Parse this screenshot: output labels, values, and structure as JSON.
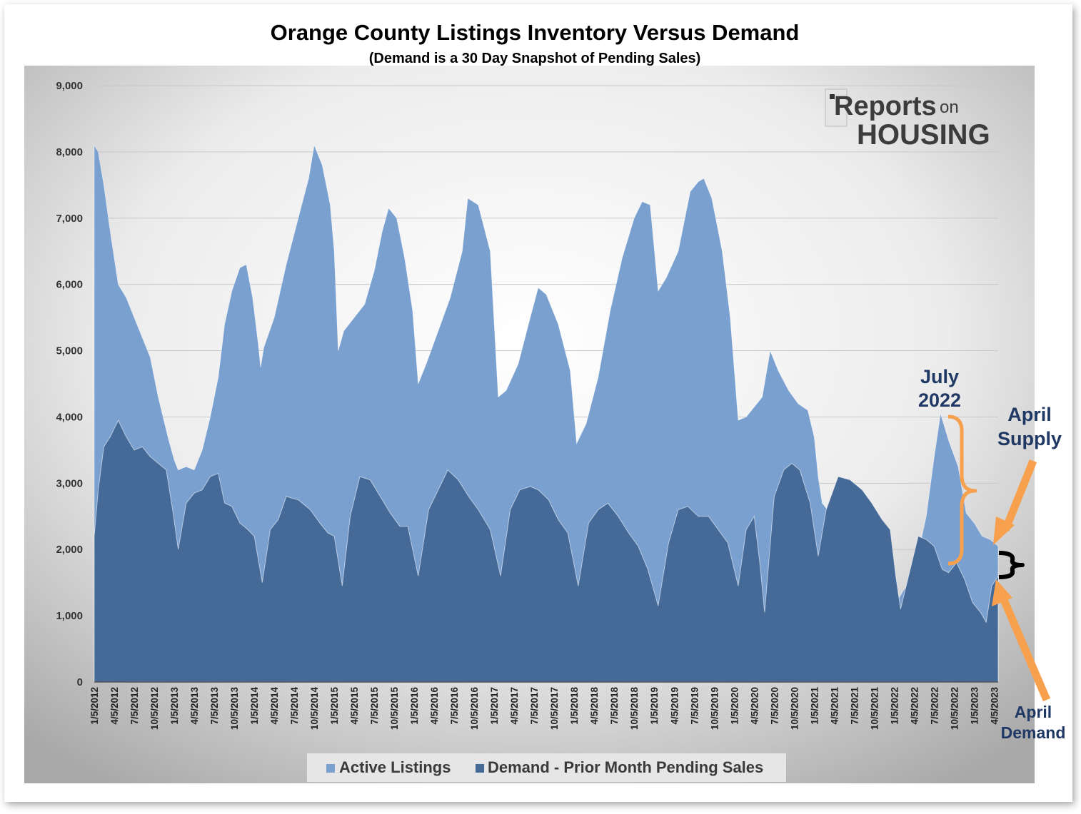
{
  "chart_data": {
    "type": "area",
    "title": "Orange County Listings Inventory Versus Demand",
    "subtitle": "(Demand is a 30 Day Snapshot of Pending Sales)",
    "xlabel": "",
    "ylabel": "",
    "ylim": [
      0,
      9000
    ],
    "grid": true,
    "legend_position": "bottom",
    "y_ticks": [
      "0",
      "1,000",
      "2,000",
      "3,000",
      "4,000",
      "5,000",
      "6,000",
      "7,000",
      "8,000",
      "9,000"
    ],
    "x_ticks": [
      "1/5/2012",
      "4/5/2012",
      "7/5/2012",
      "10/5/2012",
      "1/5/2013",
      "4/5/2013",
      "7/5/2013",
      "10/5/2013",
      "1/5/2014",
      "4/5/2014",
      "7/5/2014",
      "10/5/2014",
      "1/5/2015",
      "4/5/2015",
      "7/5/2015",
      "10/5/2015",
      "1/5/2016",
      "4/5/2016",
      "7/5/2016",
      "10/5/2016",
      "1/5/2017",
      "4/5/2017",
      "7/5/2017",
      "10/5/2017",
      "1/5/2018",
      "4/5/2018",
      "7/5/2018",
      "10/5/2018",
      "1/5/2019",
      "4/5/2019",
      "7/5/2019",
      "10/5/2019",
      "1/5/2020",
      "4/5/2020",
      "7/5/2020",
      "10/5/2020",
      "1/5/2021",
      "4/5/2021",
      "7/5/2021",
      "10/5/2021",
      "1/5/2022",
      "4/5/2022",
      "7/5/2022",
      "10/5/2022",
      "1/5/2023",
      "4/5/2023"
    ],
    "x_range_years": [
      2012.0,
      2023.3
    ],
    "series": [
      {
        "name": "Active Listings",
        "color": "#7aa0d0",
        "points": [
          [
            2012.0,
            8100
          ],
          [
            2012.05,
            8000
          ],
          [
            2012.12,
            7500
          ],
          [
            2012.2,
            6800
          ],
          [
            2012.3,
            6000
          ],
          [
            2012.4,
            5800
          ],
          [
            2012.5,
            5500
          ],
          [
            2012.6,
            5200
          ],
          [
            2012.7,
            4900
          ],
          [
            2012.8,
            4300
          ],
          [
            2012.92,
            3700
          ],
          [
            2013.0,
            3350
          ],
          [
            2013.05,
            3200
          ],
          [
            2013.15,
            3250
          ],
          [
            2013.25,
            3200
          ],
          [
            2013.35,
            3500
          ],
          [
            2013.45,
            4000
          ],
          [
            2013.55,
            4600
          ],
          [
            2013.63,
            5400
          ],
          [
            2013.72,
            5900
          ],
          [
            2013.82,
            6250
          ],
          [
            2013.9,
            6300
          ],
          [
            2013.98,
            5800
          ],
          [
            2014.05,
            5100
          ],
          [
            2014.08,
            4750
          ],
          [
            2014.12,
            5050
          ],
          [
            2014.25,
            5500
          ],
          [
            2014.4,
            6300
          ],
          [
            2014.55,
            7000
          ],
          [
            2014.68,
            7600
          ],
          [
            2014.75,
            8100
          ],
          [
            2014.85,
            7800
          ],
          [
            2014.95,
            7200
          ],
          [
            2015.0,
            6500
          ],
          [
            2015.05,
            5000
          ],
          [
            2015.12,
            5300
          ],
          [
            2015.25,
            5500
          ],
          [
            2015.38,
            5700
          ],
          [
            2015.5,
            6200
          ],
          [
            2015.6,
            6800
          ],
          [
            2015.68,
            7150
          ],
          [
            2015.78,
            7000
          ],
          [
            2015.88,
            6400
          ],
          [
            2015.98,
            5600
          ],
          [
            2016.05,
            4500
          ],
          [
            2016.15,
            4800
          ],
          [
            2016.3,
            5300
          ],
          [
            2016.45,
            5800
          ],
          [
            2016.6,
            6500
          ],
          [
            2016.67,
            7300
          ],
          [
            2016.8,
            7200
          ],
          [
            2016.95,
            6500
          ],
          [
            2017.0,
            5400
          ],
          [
            2017.05,
            4300
          ],
          [
            2017.15,
            4400
          ],
          [
            2017.3,
            4800
          ],
          [
            2017.45,
            5500
          ],
          [
            2017.55,
            5950
          ],
          [
            2017.65,
            5850
          ],
          [
            2017.8,
            5400
          ],
          [
            2017.95,
            4700
          ],
          [
            2018.03,
            3600
          ],
          [
            2018.15,
            3900
          ],
          [
            2018.3,
            4600
          ],
          [
            2018.45,
            5600
          ],
          [
            2018.6,
            6400
          ],
          [
            2018.75,
            7000
          ],
          [
            2018.85,
            7250
          ],
          [
            2018.95,
            7200
          ],
          [
            2019.05,
            5900
          ],
          [
            2019.15,
            6100
          ],
          [
            2019.3,
            6500
          ],
          [
            2019.45,
            7400
          ],
          [
            2019.55,
            7550
          ],
          [
            2019.62,
            7600
          ],
          [
            2019.72,
            7300
          ],
          [
            2019.85,
            6500
          ],
          [
            2019.95,
            5500
          ],
          [
            2020.05,
            3950
          ],
          [
            2020.15,
            4000
          ],
          [
            2020.25,
            4150
          ],
          [
            2020.35,
            4300
          ],
          [
            2020.45,
            5000
          ],
          [
            2020.55,
            4700
          ],
          [
            2020.68,
            4400
          ],
          [
            2020.8,
            4200
          ],
          [
            2020.92,
            4100
          ],
          [
            2021.0,
            3700
          ],
          [
            2021.05,
            3100
          ],
          [
            2021.1,
            2700
          ],
          [
            2021.2,
            2550
          ],
          [
            2021.35,
            2500
          ],
          [
            2021.5,
            2450
          ],
          [
            2021.65,
            2550
          ],
          [
            2021.8,
            2450
          ],
          [
            2021.92,
            2250
          ],
          [
            2022.0,
            1400
          ],
          [
            2022.05,
            1250
          ],
          [
            2022.15,
            1450
          ],
          [
            2022.25,
            1700
          ],
          [
            2022.32,
            2050
          ],
          [
            2022.4,
            2500
          ],
          [
            2022.5,
            3400
          ],
          [
            2022.58,
            4050
          ],
          [
            2022.68,
            3650
          ],
          [
            2022.8,
            3250
          ],
          [
            2022.9,
            2550
          ],
          [
            2023.0,
            2400
          ],
          [
            2023.1,
            2200
          ],
          [
            2023.2,
            2150
          ],
          [
            2023.3,
            2050
          ]
        ]
      },
      {
        "name": "Demand - Prior Month Pending Sales",
        "color": "#456a98",
        "points": [
          [
            2012.0,
            2200
          ],
          [
            2012.05,
            2900
          ],
          [
            2012.12,
            3550
          ],
          [
            2012.2,
            3700
          ],
          [
            2012.3,
            3950
          ],
          [
            2012.4,
            3700
          ],
          [
            2012.5,
            3500
          ],
          [
            2012.6,
            3550
          ],
          [
            2012.7,
            3400
          ],
          [
            2012.8,
            3300
          ],
          [
            2012.9,
            3200
          ],
          [
            2012.98,
            2600
          ],
          [
            2013.05,
            2000
          ],
          [
            2013.15,
            2700
          ],
          [
            2013.25,
            2850
          ],
          [
            2013.35,
            2900
          ],
          [
            2013.45,
            3100
          ],
          [
            2013.55,
            3150
          ],
          [
            2013.63,
            2700
          ],
          [
            2013.72,
            2650
          ],
          [
            2013.82,
            2400
          ],
          [
            2013.92,
            2300
          ],
          [
            2014.0,
            2200
          ],
          [
            2014.05,
            1850
          ],
          [
            2014.1,
            1500
          ],
          [
            2014.2,
            2300
          ],
          [
            2014.3,
            2450
          ],
          [
            2014.4,
            2800
          ],
          [
            2014.55,
            2750
          ],
          [
            2014.7,
            2600
          ],
          [
            2014.82,
            2400
          ],
          [
            2014.92,
            2250
          ],
          [
            2015.0,
            2200
          ],
          [
            2015.1,
            1450
          ],
          [
            2015.2,
            2500
          ],
          [
            2015.32,
            3100
          ],
          [
            2015.45,
            3050
          ],
          [
            2015.55,
            2850
          ],
          [
            2015.7,
            2550
          ],
          [
            2015.82,
            2350
          ],
          [
            2015.92,
            2350
          ],
          [
            2016.05,
            1600
          ],
          [
            2016.18,
            2600
          ],
          [
            2016.32,
            2950
          ],
          [
            2016.42,
            3200
          ],
          [
            2016.55,
            3050
          ],
          [
            2016.68,
            2800
          ],
          [
            2016.8,
            2600
          ],
          [
            2016.95,
            2300
          ],
          [
            2017.08,
            1600
          ],
          [
            2017.2,
            2600
          ],
          [
            2017.32,
            2900
          ],
          [
            2017.45,
            2950
          ],
          [
            2017.55,
            2900
          ],
          [
            2017.68,
            2750
          ],
          [
            2017.8,
            2450
          ],
          [
            2017.92,
            2250
          ],
          [
            2018.05,
            1450
          ],
          [
            2018.18,
            2400
          ],
          [
            2018.3,
            2600
          ],
          [
            2018.42,
            2700
          ],
          [
            2018.55,
            2500
          ],
          [
            2018.68,
            2250
          ],
          [
            2018.8,
            2050
          ],
          [
            2018.92,
            1700
          ],
          [
            2019.05,
            1150
          ],
          [
            2019.18,
            2100
          ],
          [
            2019.3,
            2600
          ],
          [
            2019.42,
            2650
          ],
          [
            2019.55,
            2500
          ],
          [
            2019.68,
            2500
          ],
          [
            2019.8,
            2300
          ],
          [
            2019.92,
            2100
          ],
          [
            2020.05,
            1450
          ],
          [
            2020.15,
            2300
          ],
          [
            2020.25,
            2500
          ],
          [
            2020.32,
            1800
          ],
          [
            2020.38,
            1050
          ],
          [
            2020.5,
            2800
          ],
          [
            2020.62,
            3200
          ],
          [
            2020.72,
            3300
          ],
          [
            2020.82,
            3200
          ],
          [
            2020.95,
            2700
          ],
          [
            2021.05,
            1900
          ],
          [
            2021.15,
            2600
          ],
          [
            2021.3,
            3100
          ],
          [
            2021.45,
            3050
          ],
          [
            2021.6,
            2900
          ],
          [
            2021.72,
            2700
          ],
          [
            2021.85,
            2450
          ],
          [
            2021.95,
            2300
          ],
          [
            2022.02,
            1600
          ],
          [
            2022.08,
            1100
          ],
          [
            2022.2,
            1700
          ],
          [
            2022.3,
            2200
          ],
          [
            2022.4,
            2150
          ],
          [
            2022.5,
            2050
          ],
          [
            2022.6,
            1700
          ],
          [
            2022.68,
            1650
          ],
          [
            2022.78,
            1800
          ],
          [
            2022.88,
            1550
          ],
          [
            2022.98,
            1200
          ],
          [
            2023.08,
            1050
          ],
          [
            2023.15,
            900
          ],
          [
            2023.22,
            1450
          ],
          [
            2023.3,
            1600
          ]
        ]
      }
    ],
    "annotations": {
      "july": [
        "July",
        "2022"
      ],
      "april_supply": [
        "April",
        "Supply"
      ],
      "april_demand": [
        "April",
        "Demand"
      ]
    },
    "logo": {
      "line1": "Reports",
      "on": "on",
      "line2": "HOUSING"
    },
    "colors": {
      "supply": "#7aa0d0",
      "demand": "#456a98",
      "orange": "#f7a04d",
      "annotation": "#1f3864"
    }
  }
}
